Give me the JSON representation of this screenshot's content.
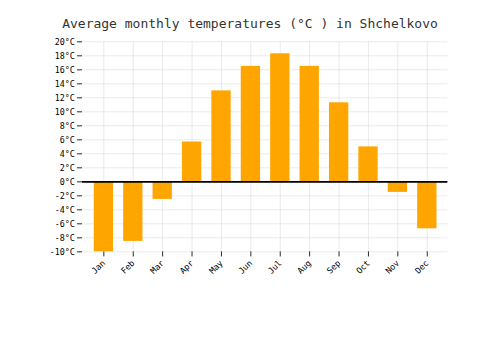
{
  "chart_data": {
    "type": "bar",
    "title": "Average monthly temperatures (°C ) in Shchelkovo",
    "categories": [
      "Jan",
      "Feb",
      "Mar",
      "Apr",
      "May",
      "Jun",
      "Jul",
      "Aug",
      "Sep",
      "Oct",
      "Nov",
      "Dec"
    ],
    "values": [
      -10,
      -8.5,
      -2.5,
      5.7,
      13,
      16.5,
      18.3,
      16.5,
      11.3,
      5,
      -1.5,
      -6.7
    ],
    "color": "#FFA500",
    "ylim": [
      -10,
      20
    ],
    "yticks": [
      {
        "value": -10,
        "label": "-10°C"
      },
      {
        "value": -8,
        "label": "-8°C"
      },
      {
        "value": -6,
        "label": "-6°C"
      },
      {
        "value": -4,
        "label": "-4°C"
      },
      {
        "value": -2,
        "label": "-2°C"
      },
      {
        "value": 0,
        "label": "0°C"
      },
      {
        "value": 2,
        "label": "2°C"
      },
      {
        "value": 4,
        "label": "4°C"
      },
      {
        "value": 6,
        "label": "6°C"
      },
      {
        "value": 8,
        "label": "8°C"
      },
      {
        "value": 10,
        "label": "10°C"
      },
      {
        "value": 12,
        "label": "12°C"
      },
      {
        "value": 14,
        "label": "14°C"
      },
      {
        "value": 16,
        "label": "16°C"
      },
      {
        "value": 18,
        "label": "18°C"
      },
      {
        "value": 20,
        "label": "20°C"
      }
    ],
    "grid": true
  }
}
